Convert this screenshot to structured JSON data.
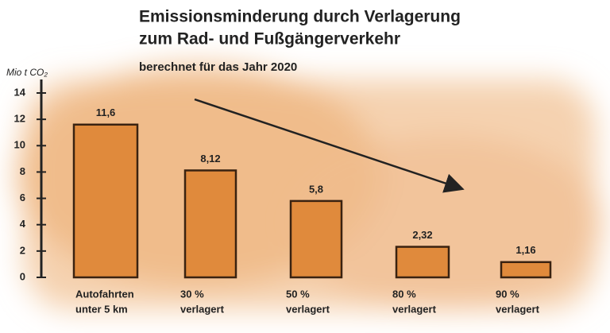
{
  "chart_data": {
    "type": "bar",
    "title": [
      "Emissionsminderung durch Verlagerung",
      "zum Rad- und Fußgängerverkehr"
    ],
    "subtitle": "berechnet für das Jahr 2020",
    "y_label": "Mio t CO₂",
    "categories": [
      [
        "Autofahrten",
        "unter 5 km"
      ],
      [
        "30 %",
        "verlagert"
      ],
      [
        "50 %",
        "verlagert"
      ],
      [
        "80 %",
        "verlagert"
      ],
      [
        "90 %",
        "verlagert"
      ]
    ],
    "values": [
      11.6,
      8.12,
      5.8,
      2.32,
      1.16
    ],
    "value_labels": [
      "11,6",
      "8,12",
      "5,8",
      "2,32",
      "1,16"
    ],
    "color": "#e08a3c",
    "ylim": [
      0,
      14
    ],
    "yticks": [
      0,
      2,
      4,
      6,
      8,
      10,
      12,
      14
    ]
  }
}
